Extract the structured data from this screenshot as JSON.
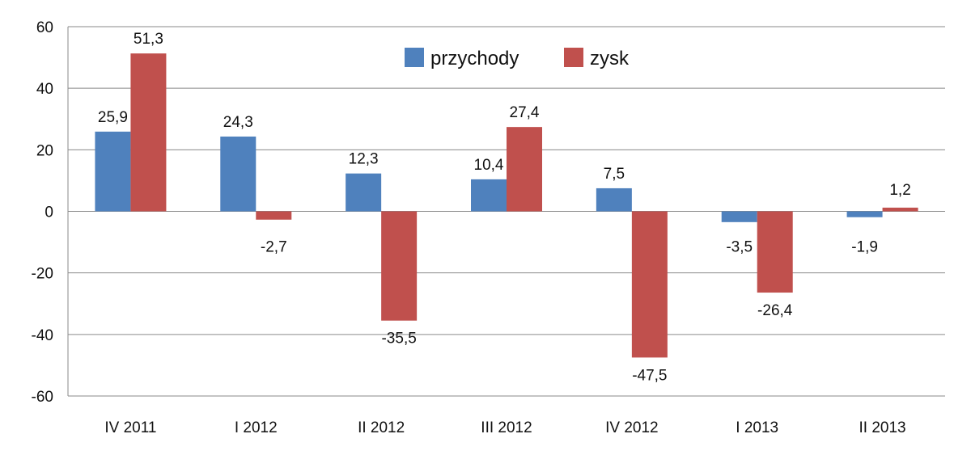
{
  "chart_data": {
    "type": "bar",
    "categories": [
      "IV 2011",
      "I 2012",
      "II 2012",
      "III 2012",
      "IV 2012",
      "I 2013",
      "II 2013"
    ],
    "series": [
      {
        "name": "przychody",
        "color": "#4f81bd",
        "values": [
          25.9,
          24.3,
          12.3,
          10.4,
          7.5,
          -3.5,
          -1.9
        ],
        "labels": [
          "25,9",
          "24,3",
          "12,3",
          "10,4",
          "7,5",
          "-3,5",
          "-1,9"
        ]
      },
      {
        "name": "zysk",
        "color": "#c0504d",
        "values": [
          51.3,
          -2.7,
          -35.5,
          27.4,
          -47.5,
          -26.4,
          1.2
        ],
        "labels": [
          "51,3",
          "-2,7",
          "-35,5",
          "27,4",
          "-47,5",
          "-26,4",
          "1,2"
        ]
      }
    ],
    "ylim": [
      -60,
      60
    ],
    "yticks": [
      60,
      40,
      20,
      0,
      -20,
      -40,
      -60
    ],
    "grid": true,
    "legend": "top-center"
  }
}
